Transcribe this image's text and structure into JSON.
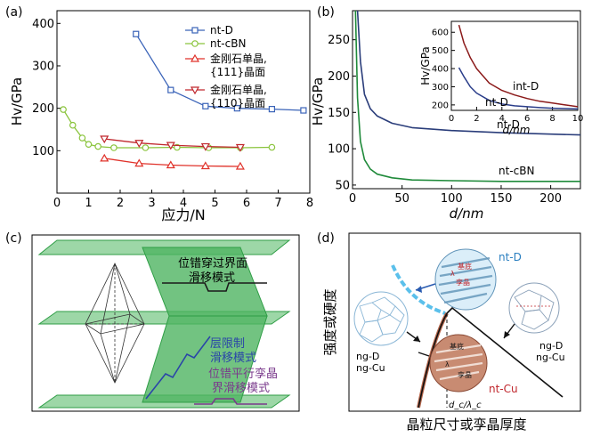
{
  "chart_data": [
    {
      "panel_label": "(a)",
      "type": "line",
      "xlabel": "应力/N",
      "ylabel": "Hv/GPa",
      "xlim": [
        0,
        8
      ],
      "ylim": [
        0,
        430
      ],
      "xticks": [
        "0",
        "1",
        "2",
        "3",
        "4",
        "5",
        "6",
        "7",
        "8"
      ],
      "yticks": [
        "100",
        "200",
        "300",
        "400"
      ],
      "legend": "top-right",
      "series": [
        {
          "name": "nt-D",
          "color": "#3a63b8",
          "marker": "square",
          "x": [
            2.5,
            3.6,
            4.7,
            5.7,
            6.8,
            7.8
          ],
          "y": [
            375,
            243,
            205,
            200,
            198,
            195
          ]
        },
        {
          "name": "nt-cBN",
          "color": "#8ac43c",
          "marker": "circle",
          "x": [
            0.2,
            0.5,
            0.8,
            1.0,
            1.3,
            1.8,
            2.8,
            3.8,
            4.8,
            5.8,
            6.8
          ],
          "y": [
            197,
            160,
            130,
            115,
            110,
            107,
            107,
            108,
            107,
            107,
            108
          ]
        },
        {
          "name_lines": [
            "金刚石单晶,",
            "{111}晶面"
          ],
          "color": "#e0322a",
          "marker": "triangle-up",
          "x": [
            1.5,
            2.6,
            3.6,
            4.7,
            5.8
          ],
          "y": [
            82,
            70,
            66,
            64,
            63
          ]
        },
        {
          "name_lines": [
            "金刚石单晶,",
            "{110}晶面"
          ],
          "color": "#c0272d",
          "marker": "triangle-down",
          "x": [
            1.5,
            2.6,
            3.6,
            4.7,
            5.8
          ],
          "y": [
            128,
            118,
            113,
            110,
            108
          ]
        }
      ]
    },
    {
      "panel_label": "(b)",
      "type": "line",
      "xlabel": "d/nm",
      "ylabel": "Hv/GPa",
      "xlim": [
        0,
        230
      ],
      "ylim": [
        45,
        290
      ],
      "xticks": [
        "0",
        "50",
        "100",
        "150",
        "200"
      ],
      "yticks": [
        "50",
        "100",
        "150",
        "200",
        "250"
      ],
      "series": [
        {
          "name": "nt-D",
          "color": "#2a3d7a",
          "x": [
            5,
            8,
            12,
            18,
            25,
            40,
            60,
            100,
            150,
            230
          ],
          "y": [
            290,
            220,
            175,
            155,
            145,
            135,
            129,
            125,
            122,
            119
          ]
        },
        {
          "name": "nt-cBN",
          "color": "#1f8a3a",
          "x": [
            3,
            5,
            8,
            12,
            18,
            25,
            40,
            60,
            100,
            150,
            230
          ],
          "y": [
            290,
            170,
            110,
            85,
            72,
            65,
            60,
            57,
            56,
            55,
            55
          ]
        }
      ],
      "inset": {
        "xlabel": "d/nm",
        "ylabel": "Hv/GPa",
        "xlim": [
          0,
          10
        ],
        "ylim": [
          170,
          660
        ],
        "xticks": [
          "0",
          "2",
          "4",
          "6",
          "8",
          "10"
        ],
        "yticks": [
          "200",
          "300",
          "400",
          "500",
          "600"
        ],
        "series": [
          {
            "name": "int-D",
            "color": "#8b1a1a",
            "x": [
              0.6,
              1,
              1.5,
              2,
              3,
              4,
              5,
              6,
              7,
              8,
              9,
              10
            ],
            "y": [
              640,
              540,
              460,
              400,
              320,
              280,
              255,
              235,
              220,
              210,
              200,
              190
            ]
          },
          {
            "name": "nt-D",
            "color": "#2a3d8a",
            "x": [
              0.6,
              1,
              1.5,
              2,
              3,
              4,
              5,
              6,
              7,
              8,
              9,
              10
            ],
            "y": [
              405,
              355,
              300,
              265,
              225,
              205,
              195,
              190,
              185,
              182,
              180,
              178
            ]
          }
        ]
      }
    }
  ],
  "panel_c": {
    "panel_label": "(c)",
    "labels": {
      "cross": [
        "位错穿过界面",
        "滑移模式"
      ],
      "layer": [
        "层限制",
        "滑移模式"
      ],
      "parallel": [
        "位错平行孪晶",
        "界滑移模式"
      ]
    },
    "colors": {
      "sheet": "#2f9e46",
      "sheet_fill": "#7cc98a",
      "cross": "#1b1b1b",
      "layer": "#2a45a8",
      "parallel": "#7a3a8c"
    }
  },
  "panel_d": {
    "panel_label": "(d)",
    "xlabel": "晶粒尺寸或孪晶厚度",
    "ylabel": "强度或硬度",
    "critical_label": "d_c/λ_c",
    "labels": {
      "ntD": "nt-D",
      "ntCu": "nt-Cu",
      "ngLeft": [
        "ng-D",
        "ng-Cu"
      ],
      "ngRight": [
        "ng-D",
        "ng-Cu"
      ],
      "substrate": "基底",
      "twin": "孪晶",
      "lambda": "λ"
    },
    "colors": {
      "blue": "#5bc0eb",
      "copper": "#b5654a",
      "grain": "#8ab6d6",
      "dark": "#111111"
    }
  }
}
